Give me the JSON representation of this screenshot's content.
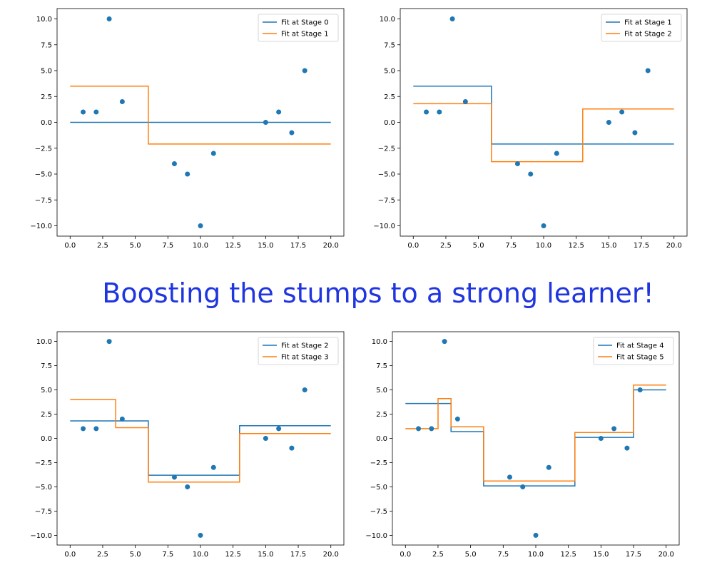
{
  "heading": "Boosting the stumps to a strong learner!",
  "colors": {
    "series_1": "#1f77b4",
    "series_2": "#ff7f0e",
    "points": "#1f77b4"
  },
  "chart_data": [
    {
      "type": "line",
      "panel": "top-left",
      "xlim": [
        -1,
        21
      ],
      "ylim": [
        -11,
        11
      ],
      "xticks": [
        "0.0",
        "2.5",
        "5.0",
        "7.5",
        "10.0",
        "12.5",
        "15.0",
        "17.5",
        "20.0"
      ],
      "yticks": [
        "-10.0",
        "-7.5",
        "-5.0",
        "-2.5",
        "0.0",
        "2.5",
        "5.0",
        "7.5",
        "10.0"
      ],
      "legend_position": "upper right",
      "scatter": {
        "x": [
          1,
          2,
          3,
          4,
          8,
          9,
          10,
          11,
          15,
          16,
          17,
          18
        ],
        "y": [
          1,
          1,
          10,
          2,
          -4,
          -5,
          -10,
          -3,
          0,
          1,
          -1,
          5
        ]
      },
      "series": [
        {
          "name": "Fit at Stage 0",
          "steps": [
            [
              0,
              0
            ],
            [
              20,
              0
            ]
          ]
        },
        {
          "name": "Fit at Stage 1",
          "steps": [
            [
              0,
              3.5
            ],
            [
              6,
              3.5
            ],
            [
              6,
              -2.1
            ],
            [
              20,
              -2.1
            ]
          ]
        }
      ]
    },
    {
      "type": "line",
      "panel": "top-right",
      "xlim": [
        -1,
        21
      ],
      "ylim": [
        -11,
        11
      ],
      "xticks": [
        "0.0",
        "2.5",
        "5.0",
        "7.5",
        "10.0",
        "12.5",
        "15.0",
        "17.5",
        "20.0"
      ],
      "yticks": [
        "-10.0",
        "-7.5",
        "-5.0",
        "-2.5",
        "0.0",
        "2.5",
        "5.0",
        "7.5",
        "10.0"
      ],
      "legend_position": "upper right",
      "scatter": {
        "x": [
          1,
          2,
          3,
          4,
          8,
          9,
          10,
          11,
          15,
          16,
          17,
          18
        ],
        "y": [
          1,
          1,
          10,
          2,
          -4,
          -5,
          -10,
          -3,
          0,
          1,
          -1,
          5
        ]
      },
      "series": [
        {
          "name": "Fit at Stage 1",
          "steps": [
            [
              0,
              3.5
            ],
            [
              6,
              3.5
            ],
            [
              6,
              -2.1
            ],
            [
              20,
              -2.1
            ]
          ]
        },
        {
          "name": "Fit at Stage 2",
          "steps": [
            [
              0,
              1.8
            ],
            [
              6,
              1.8
            ],
            [
              6,
              -3.8
            ],
            [
              13,
              -3.8
            ],
            [
              13,
              1.3
            ],
            [
              20,
              1.3
            ]
          ]
        }
      ]
    },
    {
      "type": "line",
      "panel": "bottom-left",
      "xlim": [
        -1,
        21
      ],
      "ylim": [
        -11,
        11
      ],
      "xticks": [
        "0.0",
        "2.5",
        "5.0",
        "7.5",
        "10.0",
        "12.5",
        "15.0",
        "17.5",
        "20.0"
      ],
      "yticks": [
        "-10.0",
        "-7.5",
        "-5.0",
        "-2.5",
        "0.0",
        "2.5",
        "5.0",
        "7.5",
        "10.0"
      ],
      "legend_position": "upper right",
      "scatter": {
        "x": [
          1,
          2,
          3,
          4,
          8,
          9,
          10,
          11,
          15,
          16,
          17,
          18
        ],
        "y": [
          1,
          1,
          10,
          2,
          -4,
          -5,
          -10,
          -3,
          0,
          1,
          -1,
          5
        ]
      },
      "series": [
        {
          "name": "Fit at Stage 2",
          "steps": [
            [
              0,
              1.8
            ],
            [
              6,
              1.8
            ],
            [
              6,
              -3.8
            ],
            [
              13,
              -3.8
            ],
            [
              13,
              1.3
            ],
            [
              20,
              1.3
            ]
          ]
        },
        {
          "name": "Fit at Stage 3",
          "steps": [
            [
              0,
              4.0
            ],
            [
              3.5,
              4.0
            ],
            [
              3.5,
              1.1
            ],
            [
              6,
              1.1
            ],
            [
              6,
              -4.5
            ],
            [
              13,
              -4.5
            ],
            [
              13,
              0.5
            ],
            [
              20,
              0.5
            ]
          ]
        }
      ]
    },
    {
      "type": "line",
      "panel": "bottom-right",
      "xlim": [
        -1,
        21
      ],
      "ylim": [
        -11,
        11
      ],
      "xticks": [
        "0.0",
        "2.5",
        "5.0",
        "7.5",
        "10.0",
        "12.5",
        "15.0",
        "17.5",
        "20.0"
      ],
      "yticks": [
        "-10.0",
        "-7.5",
        "-5.0",
        "-2.5",
        "0.0",
        "2.5",
        "5.0",
        "7.5",
        "10.0"
      ],
      "legend_position": "upper right",
      "scatter": {
        "x": [
          1,
          2,
          3,
          4,
          8,
          9,
          10,
          11,
          15,
          16,
          17,
          18
        ],
        "y": [
          1,
          1,
          10,
          2,
          -4,
          -5,
          -10,
          -3,
          0,
          1,
          -1,
          5
        ]
      },
      "series": [
        {
          "name": "Fit at Stage 4",
          "steps": [
            [
              0,
              3.6
            ],
            [
              3.5,
              3.6
            ],
            [
              3.5,
              0.7
            ],
            [
              6,
              0.7
            ],
            [
              6,
              -4.9
            ],
            [
              13,
              -4.9
            ],
            [
              13,
              0.1
            ],
            [
              17.5,
              0.1
            ],
            [
              17.5,
              5.0
            ],
            [
              20,
              5.0
            ]
          ]
        },
        {
          "name": "Fit at Stage 5",
          "steps": [
            [
              0,
              1.0
            ],
            [
              2.5,
              1.0
            ],
            [
              2.5,
              4.1
            ],
            [
              3.5,
              4.1
            ],
            [
              3.5,
              1.2
            ],
            [
              6,
              1.2
            ],
            [
              6,
              -4.4
            ],
            [
              13,
              -4.4
            ],
            [
              13,
              0.6
            ],
            [
              17.5,
              0.6
            ],
            [
              17.5,
              5.5
            ],
            [
              20,
              5.5
            ]
          ]
        }
      ]
    }
  ]
}
